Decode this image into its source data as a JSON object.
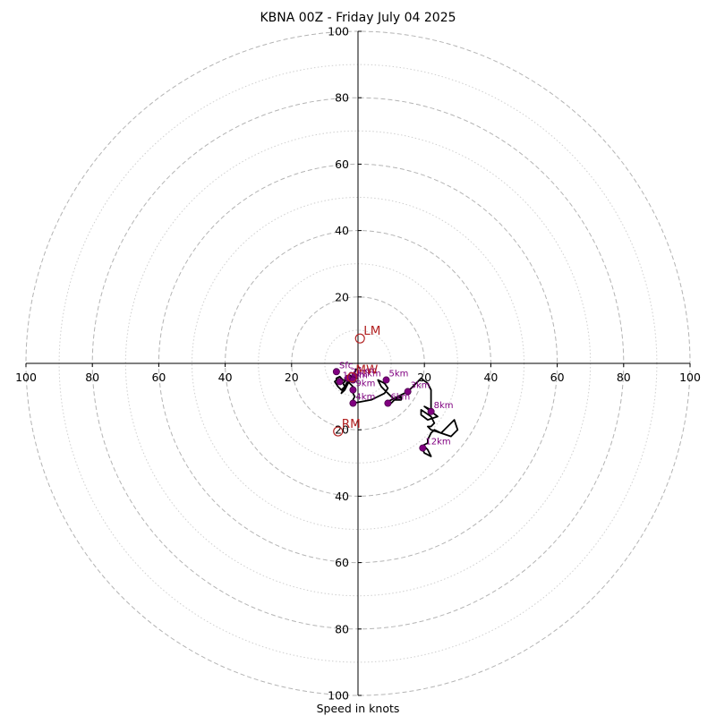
{
  "chart_data": {
    "type": "hodograph",
    "title": "KBNA 00Z - Friday July 04 2025",
    "xlabel": "Speed in knots",
    "range": 100,
    "major_rings": [
      20,
      40,
      60,
      80,
      100
    ],
    "minor_rings": [
      10,
      30,
      50,
      70,
      90
    ],
    "x_ticks": [
      {
        "v": -100,
        "label": "100"
      },
      {
        "v": -80,
        "label": "80"
      },
      {
        "v": -60,
        "label": "60"
      },
      {
        "v": -40,
        "label": "40"
      },
      {
        "v": -20,
        "label": "20"
      },
      {
        "v": 20,
        "label": "20"
      },
      {
        "v": 40,
        "label": "40"
      },
      {
        "v": 60,
        "label": "60"
      },
      {
        "v": 80,
        "label": "80"
      },
      {
        "v": 100,
        "label": "100"
      }
    ],
    "y_ticks": [
      {
        "v": 100,
        "label": "100"
      },
      {
        "v": 80,
        "label": "80"
      },
      {
        "v": 60,
        "label": "60"
      },
      {
        "v": 40,
        "label": "40"
      },
      {
        "v": 20,
        "label": "20"
      },
      {
        "v": -20,
        "label": "20"
      },
      {
        "v": -40,
        "label": "40"
      },
      {
        "v": -60,
        "label": "60"
      },
      {
        "v": -80,
        "label": "80"
      },
      {
        "v": -100,
        "label": "100"
      }
    ],
    "trace": [
      [
        -0.5,
        -1.5
      ],
      [
        -1.5,
        -4.5
      ],
      [
        -3,
        -6
      ],
      [
        -4,
        -8
      ],
      [
        -5,
        -9
      ],
      [
        -3.5,
        -6
      ],
      [
        -2,
        -4
      ],
      [
        -2.5,
        -3.5
      ],
      [
        -3.5,
        -5
      ],
      [
        -4.5,
        -6
      ],
      [
        -4,
        -7
      ],
      [
        -5,
        -8
      ],
      [
        -6,
        -7
      ],
      [
        -7,
        -5.5
      ],
      [
        -6.5,
        -5
      ],
      [
        -6.5,
        -4.5
      ],
      [
        -5.5,
        -4
      ],
      [
        -4.5,
        -5
      ],
      [
        -3.5,
        -5
      ],
      [
        -2.5,
        -6
      ],
      [
        -1.5,
        -7
      ],
      [
        -2,
        -8
      ],
      [
        -1.5,
        -9
      ],
      [
        -1,
        -10
      ],
      [
        -1.5,
        -11
      ],
      [
        -1.5,
        -12
      ],
      [
        4,
        -11
      ],
      [
        8,
        -9
      ],
      [
        9,
        -7.5
      ],
      [
        8,
        -6
      ],
      [
        7,
        -5.5
      ],
      [
        6,
        -5
      ],
      [
        7,
        -7
      ],
      [
        8,
        -8
      ],
      [
        9,
        -9
      ],
      [
        11,
        -11
      ],
      [
        13,
        -11
      ],
      [
        13,
        -10
      ],
      [
        11,
        -11
      ],
      [
        10,
        -12
      ],
      [
        9,
        -11.5
      ],
      [
        12,
        -10
      ],
      [
        13,
        -9.5
      ],
      [
        14,
        -9
      ],
      [
        15,
        -8.5
      ],
      [
        16,
        -7.5
      ],
      [
        19,
        -4.5
      ],
      [
        21,
        -6
      ],
      [
        22,
        -8
      ],
      [
        22,
        -11
      ],
      [
        22,
        -14
      ],
      [
        20,
        -13
      ],
      [
        24,
        -16
      ],
      [
        21,
        -17
      ],
      [
        19,
        -15.5
      ],
      [
        19,
        -14
      ],
      [
        22,
        -16
      ],
      [
        22.5,
        -17
      ],
      [
        23,
        -18
      ],
      [
        22,
        -19
      ],
      [
        21,
        -19
      ],
      [
        22,
        -20
      ],
      [
        25,
        -21
      ],
      [
        28,
        -22
      ],
      [
        30,
        -20
      ],
      [
        29,
        -17
      ],
      [
        25,
        -21
      ],
      [
        23,
        -20
      ],
      [
        22,
        -21
      ],
      [
        21,
        -23
      ],
      [
        21,
        -24
      ],
      [
        19,
        -25
      ],
      [
        20,
        -27
      ],
      [
        22,
        -28
      ],
      [
        21,
        -26
      ],
      [
        20,
        -25
      ],
      [
        19,
        -25
      ]
    ],
    "height_points": [
      {
        "label": "1km",
        "u": -1,
        "v": -4
      },
      {
        "label": "2km",
        "u": -3,
        "v": -4.5
      },
      {
        "label": "3km",
        "u": 15,
        "v": -8.5
      },
      {
        "label": "4km",
        "u": -1.5,
        "v": -12
      },
      {
        "label": "5km",
        "u": 8.5,
        "v": -5
      },
      {
        "label": "6km",
        "u": 9,
        "v": -12
      },
      {
        "label": "8km",
        "u": 22,
        "v": -14.5
      },
      {
        "label": "9km",
        "u": -1.5,
        "v": -8
      },
      {
        "label": "10km",
        "u": -5.5,
        "v": -5.5
      },
      {
        "label": "11km",
        "u": -1.5,
        "v": -5
      },
      {
        "label": "12km",
        "u": 19.5,
        "v": -25.5
      },
      {
        "label": "Sfc",
        "u": -6.5,
        "v": -2.5
      }
    ],
    "markers": [
      {
        "label": "LM",
        "u": 0.6,
        "v": 7.5
      },
      {
        "label": "MW",
        "u": -1.8,
        "v": -4.2
      },
      {
        "label": "RM",
        "u": -6,
        "v": -20.5
      }
    ],
    "colors": {
      "trace": "#000000",
      "points": "#800080",
      "markers": "#b22222",
      "rings": "#b4b4b4",
      "axes": "#000000"
    }
  }
}
